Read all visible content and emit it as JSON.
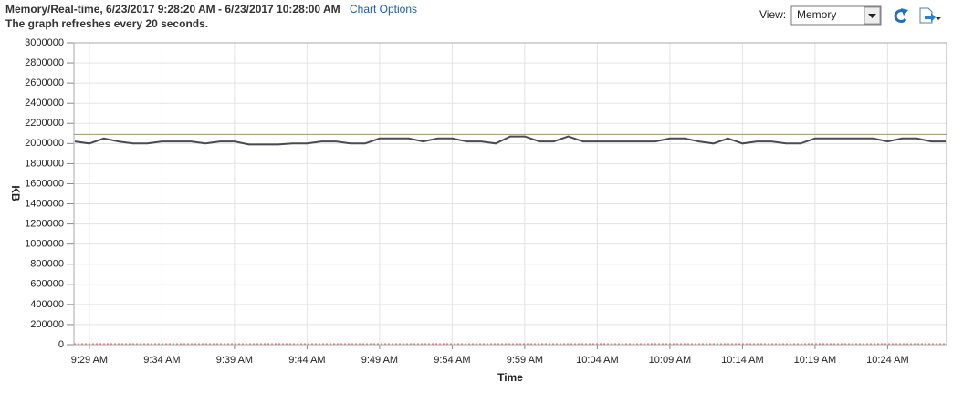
{
  "header": {
    "title": "Memory/Real-time, 6/23/2017 9:28:20 AM - 6/23/2017 10:28:00 AM",
    "chart_options": "Chart Options",
    "subtitle": "The graph refreshes every 20 seconds."
  },
  "view": {
    "label": "View:",
    "selected": "Memory"
  },
  "chart_data": {
    "type": "line",
    "ylabel": "KB",
    "xlabel": "Time",
    "categories": [
      null,
      "9:29 AM",
      null,
      null,
      null,
      null,
      "9:34 AM",
      null,
      null,
      null,
      null,
      "9:39 AM",
      null,
      null,
      null,
      null,
      "9:44 AM",
      null,
      null,
      null,
      null,
      "9:49 AM",
      null,
      null,
      null,
      null,
      "9:54 AM",
      null,
      null,
      null,
      null,
      "9:59 AM",
      null,
      null,
      null,
      null,
      "10:04 AM",
      null,
      null,
      null,
      null,
      "10:09 AM",
      null,
      null,
      null,
      null,
      "10:14 AM",
      null,
      null,
      null,
      null,
      "10:19 AM",
      null,
      null,
      null,
      null,
      "10:24 AM",
      null,
      null,
      null,
      null
    ],
    "series": [
      {
        "color": "#4a4a55",
        "values": [
          2020000,
          2000000,
          2050000,
          2020000,
          2000000,
          2000000,
          2020000,
          2020000,
          2020000,
          2000000,
          2020000,
          2020000,
          1990000,
          1990000,
          1990000,
          2000000,
          2000000,
          2020000,
          2020000,
          2000000,
          2000000,
          2050000,
          2050000,
          2050000,
          2020000,
          2050000,
          2050000,
          2020000,
          2020000,
          2000000,
          2070000,
          2070000,
          2020000,
          2020000,
          2070000,
          2020000,
          2020000,
          2020000,
          2020000,
          2020000,
          2020000,
          2050000,
          2050000,
          2020000,
          2000000,
          2050000,
          2000000,
          2020000,
          2020000,
          2000000,
          2000000,
          2050000,
          2050000,
          2050000,
          2050000,
          2050000,
          2020000,
          2050000,
          2050000,
          2020000,
          2020000
        ]
      }
    ],
    "hlines": [
      {
        "value": 2090000,
        "color": "#a8936a",
        "dashed": false
      },
      {
        "value": 0,
        "color": "#e07070",
        "dashed": true
      }
    ],
    "ylim": [
      0,
      3000000
    ],
    "yticks": [
      0,
      200000,
      400000,
      600000,
      800000,
      1000000,
      1200000,
      1400000,
      1600000,
      1800000,
      2000000,
      2200000,
      2400000,
      2600000,
      2800000,
      3000000
    ],
    "grid": true
  }
}
